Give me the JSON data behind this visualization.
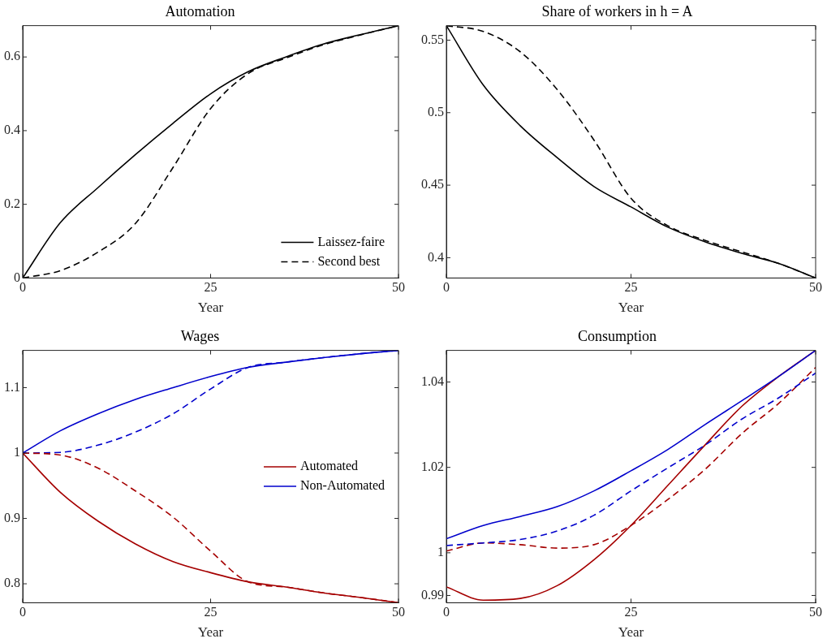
{
  "chart_data": [
    {
      "type": "line",
      "title": "Automation",
      "xlabel": "Year",
      "x": [
        0,
        5,
        10,
        15,
        20,
        25,
        30,
        35,
        40,
        45,
        50
      ],
      "xlim": [
        0,
        50
      ],
      "xticks": [
        0,
        25,
        50
      ],
      "ylim": [
        0,
        0.685
      ],
      "yticks": [
        0,
        0.2,
        0.4,
        0.6
      ],
      "legend": "bottom right",
      "marker": "none",
      "series": [
        {
          "name": "Laissez-faire",
          "color": "#000000",
          "line_style": "solid",
          "values": [
            0,
            0.15,
            0.245,
            0.335,
            0.42,
            0.5,
            0.56,
            0.6,
            0.635,
            0.661,
            0.685
          ]
        },
        {
          "name": "Second best",
          "color": "#000000",
          "line_style": "dashed",
          "values": [
            0,
            0.02,
            0.07,
            0.148,
            0.3,
            0.46,
            0.555,
            0.597,
            0.633,
            0.66,
            0.685
          ]
        }
      ]
    },
    {
      "type": "line",
      "title": "Share of workers in h = A",
      "xlabel": "Year",
      "x": [
        0,
        5,
        10,
        15,
        20,
        25,
        30,
        35,
        40,
        45,
        50
      ],
      "xlim": [
        0,
        50
      ],
      "xticks": [
        0,
        25,
        50
      ],
      "ylim": [
        0.386,
        0.56
      ],
      "yticks": [
        0.4,
        0.45,
        0.5,
        0.55
      ],
      "marker": "none",
      "series": [
        {
          "color": "#000000",
          "line_style": "solid",
          "values": [
            0.56,
            0.519,
            0.491,
            0.469,
            0.449,
            0.435,
            0.421,
            0.411,
            0.403,
            0.396,
            0.386
          ]
        },
        {
          "color": "#000000",
          "line_style": "dashed",
          "values": [
            0.56,
            0.556,
            0.542,
            0.516,
            0.481,
            0.441,
            0.422,
            0.412,
            0.404,
            0.396,
            0.386
          ]
        }
      ]
    },
    {
      "type": "line",
      "title": "Wages",
      "xlabel": "Year",
      "x": [
        0,
        5,
        10,
        15,
        20,
        25,
        30,
        35,
        40,
        45,
        50
      ],
      "xlim": [
        0,
        50
      ],
      "xticks": [
        0,
        25,
        50
      ],
      "ylim": [
        0.771,
        1.157
      ],
      "yticks": [
        0.8,
        0.9,
        1,
        1.1
      ],
      "legend": "right",
      "marker": "none",
      "series": [
        {
          "name": "Automated",
          "color": "#a50000",
          "line_style": "solid",
          "values": [
            1,
            0.94,
            0.896,
            0.861,
            0.834,
            0.817,
            0.803,
            0.795,
            0.786,
            0.779,
            0.771
          ]
        },
        {
          "name": "Non-Automated",
          "color": "#0000cc",
          "line_style": "solid",
          "values": [
            1,
            1.034,
            1.06,
            1.082,
            1.1,
            1.117,
            1.131,
            1.139,
            1.146,
            1.152,
            1.157
          ]
        },
        {
          "color": "#a50000",
          "line_style": "dashed",
          "values": [
            1,
            0.997,
            0.977,
            0.942,
            0.902,
            0.85,
            0.803,
            0.795,
            0.786,
            0.779,
            0.771
          ]
        },
        {
          "color": "#0000cc",
          "line_style": "dashed",
          "values": [
            1,
            1.001,
            1.012,
            1.032,
            1.06,
            1.098,
            1.131,
            1.139,
            1.146,
            1.152,
            1.157
          ]
        }
      ]
    },
    {
      "type": "line",
      "title": "Consumption",
      "xlabel": "Year",
      "x": [
        0,
        5,
        10,
        15,
        20,
        25,
        30,
        35,
        40,
        45,
        50
      ],
      "xlim": [
        0,
        50
      ],
      "xticks": [
        0,
        25,
        50
      ],
      "ylim": [
        0.9883,
        1.0474
      ],
      "yticks": [
        0.99,
        1,
        1.02,
        1.04
      ],
      "marker": "none",
      "series": [
        {
          "color": "#0000cc",
          "line_style": "solid",
          "values": [
            1.0033,
            1.0064,
            1.0085,
            1.0108,
            1.0145,
            1.0192,
            1.0242,
            1.03,
            1.0356,
            1.0413,
            1.0474
          ]
        },
        {
          "color": "#0000cc",
          "line_style": "dashed",
          "values": [
            1.0017,
            1.0023,
            1.0031,
            1.0051,
            1.0088,
            1.0145,
            1.0199,
            1.0252,
            1.0313,
            1.0363,
            1.0421
          ]
        },
        {
          "color": "#a50000",
          "line_style": "solid",
          "values": [
            0.992,
            0.9889,
            0.9893,
            0.9923,
            0.9984,
            1.0064,
            1.0158,
            1.0252,
            1.0343,
            1.0413,
            1.0474
          ]
        },
        {
          "color": "#a50000",
          "line_style": "dashed",
          "values": [
            1.0004,
            1.0023,
            1.0019,
            1.0011,
            1.0019,
            1.0064,
            1.0125,
            1.0195,
            1.0279,
            1.035,
            1.0434
          ]
        }
      ]
    }
  ]
}
